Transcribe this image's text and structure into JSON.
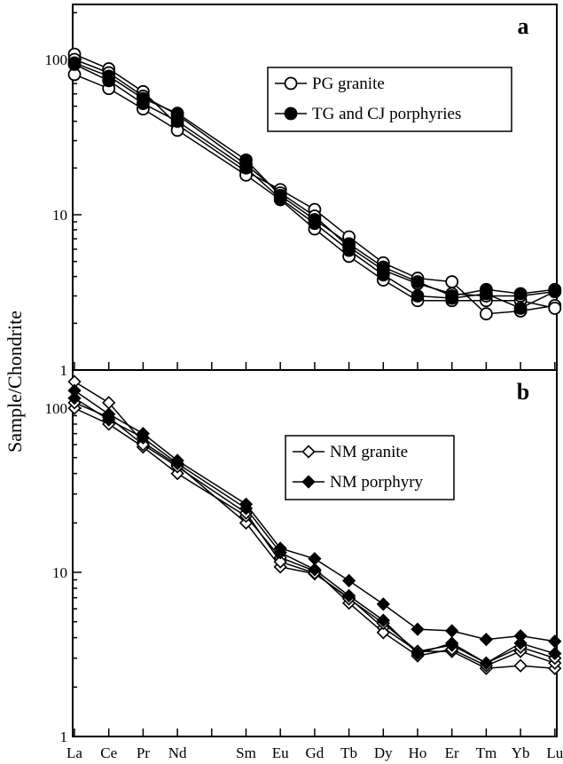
{
  "ylabel": "Sample/Chondrite",
  "chart_data": [
    {
      "type": "line",
      "panel_label": "a",
      "y_scale": "log",
      "ylim": [
        1,
        200
      ],
      "y_ticks": [
        "1",
        "10",
        "100"
      ],
      "categories": [
        "La",
        "Ce",
        "Pr",
        "Nd",
        "Sm",
        "Eu",
        "Gd",
        "Tb",
        "Dy",
        "Ho",
        "Er",
        "Tm",
        "Yb",
        "Lu"
      ],
      "x_positions": [
        1,
        2,
        3,
        4,
        6,
        7,
        8,
        9,
        10,
        11,
        12,
        13,
        14,
        15
      ],
      "legend": {
        "position": "top-right",
        "entries": [
          "PG granite",
          "TG and CJ porphyries"
        ]
      },
      "series": [
        {
          "group": "PG granite",
          "marker": "open-circle",
          "values": [
            108,
            87,
            62,
            38,
            19,
            14.5,
            10.8,
            7.2,
            4.9,
            3.9,
            3.7,
            2.3,
            2.4,
            2.6
          ]
        },
        {
          "group": "PG granite",
          "marker": "open-circle",
          "values": [
            80,
            65,
            48,
            35,
            18,
            12.5,
            8.1,
            5.4,
            3.8,
            2.8,
            2.8,
            2.8,
            2.8,
            2.5
          ]
        },
        {
          "group": "PG granite",
          "marker": "open-circle",
          "values": [
            100,
            82,
            58,
            44,
            21,
            13.8,
            9.8,
            6.2,
            4.4,
            3.6,
            3.1,
            3.0,
            3.0,
            3.2
          ]
        },
        {
          "group": "TG and CJ porphyries",
          "marker": "filled-circle",
          "values": [
            95,
            78,
            56,
            45,
            22.5,
            13.3,
            9.3,
            6.5,
            4.6,
            3.7,
            3.0,
            3.3,
            3.1,
            3.3
          ]
        },
        {
          "group": "TG and CJ porphyries",
          "marker": "filled-circle",
          "values": [
            93,
            73,
            52,
            40,
            20,
            12.7,
            8.8,
            5.9,
            4.1,
            3.0,
            2.9,
            3.1,
            2.5,
            3.2
          ]
        }
      ]
    },
    {
      "type": "line",
      "panel_label": "b",
      "y_scale": "log",
      "ylim": [
        1,
        200
      ],
      "y_ticks": [
        "1",
        "10",
        "100"
      ],
      "categories": [
        "La",
        "Ce",
        "Pr",
        "Nd",
        "Sm",
        "Eu",
        "Gd",
        "Tb",
        "Dy",
        "Ho",
        "Er",
        "Tm",
        "Yb",
        "Lu"
      ],
      "x_positions": [
        1,
        2,
        3,
        4,
        6,
        7,
        8,
        9,
        10,
        11,
        12,
        13,
        14,
        15
      ],
      "legend": {
        "position": "upper-right",
        "entries": [
          "NM granite",
          "NM porphyry"
        ]
      },
      "series": [
        {
          "group": "NM granite",
          "marker": "open-diamond",
          "values": [
            145,
            108,
            62,
            45,
            20,
            10.8,
            9.8,
            7.0,
            4.6,
            3.3,
            3.3,
            2.6,
            2.7,
            2.6
          ]
        },
        {
          "group": "NM granite",
          "marker": "open-diamond",
          "values": [
            100,
            80,
            58,
            40,
            22,
            12.3,
            10.2,
            6.5,
            4.3,
            3.1,
            3.4,
            2.7,
            3.3,
            2.8
          ]
        },
        {
          "group": "NM granite",
          "marker": "open-diamond",
          "values": [
            108,
            88,
            60,
            44,
            23,
            11.6,
            9.9,
            6.9,
            4.9,
            3.3,
            3.6,
            2.8,
            3.5,
            3.0
          ]
        },
        {
          "group": "NM porphyry",
          "marker": "filled-diamond",
          "values": [
            128,
            92,
            70,
            48,
            26,
            14.0,
            12.1,
            8.9,
            6.4,
            4.5,
            4.4,
            3.9,
            4.1,
            3.8
          ]
        },
        {
          "group": "NM porphyry",
          "marker": "filled-diamond",
          "values": [
            115,
            85,
            66,
            46,
            24.5,
            13.2,
            10.4,
            7.2,
            5.1,
            3.2,
            3.7,
            2.8,
            3.7,
            3.2
          ]
        }
      ]
    }
  ]
}
